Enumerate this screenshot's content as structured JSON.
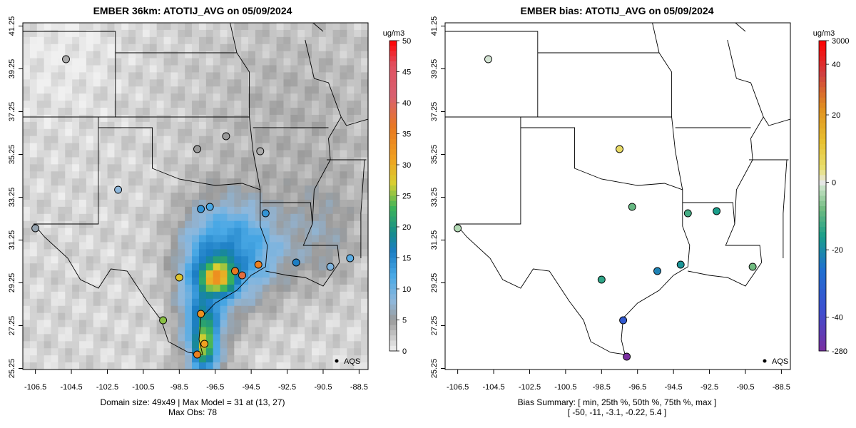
{
  "left_panel": {
    "title": "EMBER 36km: ATOTIJ_AVG on 05/09/2024",
    "footer_line1": "Domain size: 49x49 | Max Model = 31 at (13, 27)",
    "footer_line2": "Max Obs: 78",
    "colorbar_unit": "ug/m3",
    "colorbar_ticks": [
      "0",
      "5",
      "10",
      "15",
      "20",
      "25",
      "30",
      "35",
      "40",
      "45",
      "50"
    ],
    "legend_label": "AQS"
  },
  "right_panel": {
    "title": "EMBER bias: ATOTIJ_AVG on 05/09/2024",
    "footer_line1": "Bias Summary: [ min, 25th %, 50th %, 75th %, max ]",
    "footer_line2": "[ -50,   -11,   -3.1,   -0.22,   5.4 ]",
    "colorbar_unit": "ug/m3",
    "colorbar_ticks": [
      "3000",
      "40",
      "20",
      "0",
      "-20",
      "-40",
      "-280"
    ],
    "legend_label": "AQS"
  },
  "axes": {
    "x_ticks": [
      "-106.5",
      "-104.5",
      "-102.5",
      "-100.5",
      "-98.5",
      "-96.5",
      "-94.5",
      "-92.5",
      "-90.5",
      "-88.5"
    ],
    "y_ticks": [
      "25.25",
      "27.25",
      "29.25",
      "31.25",
      "33.25",
      "35.25",
      "37.25",
      "39.25",
      "41.25"
    ]
  },
  "chart_data": [
    {
      "type": "map",
      "title": "EMBER 36km: ATOTIJ_AVG on 05/09/2024",
      "variable": "ATOTIJ_AVG",
      "units": "ug/m3",
      "x_range": [
        -107.2,
        -88.0
      ],
      "y_range": [
        25.2,
        41.4
      ],
      "colorbar_range": [
        0,
        50
      ],
      "stations": [
        {
          "lon": -97.1,
          "lat": 26.4,
          "value": 31
        },
        {
          "lon": -97.3,
          "lat": 27.8,
          "value": 33
        },
        {
          "lon": -97.5,
          "lat": 25.9,
          "value": 35
        },
        {
          "lon": -98.5,
          "lat": 29.5,
          "value": 28
        },
        {
          "lon": -95.4,
          "lat": 29.8,
          "value": 36
        },
        {
          "lon": -95.0,
          "lat": 29.6,
          "value": 38
        },
        {
          "lon": -94.1,
          "lat": 30.1,
          "value": 35
        },
        {
          "lon": -96.8,
          "lat": 32.8,
          "value": 12
        },
        {
          "lon": -97.3,
          "lat": 32.7,
          "value": 14
        },
        {
          "lon": -99.4,
          "lat": 27.5,
          "value": 25
        },
        {
          "lon": -101.9,
          "lat": 33.6,
          "value": 8
        },
        {
          "lon": -106.5,
          "lat": 31.8,
          "value": 6
        },
        {
          "lon": -90.1,
          "lat": 30.0,
          "value": 9
        },
        {
          "lon": -92.0,
          "lat": 30.2,
          "value": 16
        },
        {
          "lon": -89.0,
          "lat": 30.4,
          "value": 11
        },
        {
          "lon": -93.7,
          "lat": 32.5,
          "value": 14
        },
        {
          "lon": -94.0,
          "lat": 35.4,
          "value": 4
        },
        {
          "lon": -97.5,
          "lat": 35.5,
          "value": 5
        },
        {
          "lon": -104.8,
          "lat": 39.7,
          "value": 4
        },
        {
          "lon": -95.9,
          "lat": 36.1,
          "value": 5
        }
      ]
    },
    {
      "type": "map",
      "title": "EMBER bias: ATOTIJ_AVG on 05/09/2024",
      "variable": "ATOTIJ_AVG bias",
      "units": "ug/m3",
      "x_range": [
        -107.2,
        -88.0
      ],
      "y_range": [
        25.2,
        41.4
      ],
      "summary": {
        "min": -50,
        "p25": -11,
        "p50": -3.1,
        "p75": -0.22,
        "max": 5.4
      },
      "stations": [
        {
          "lon": -97.3,
          "lat": 27.5,
          "value": -34
        },
        {
          "lon": -97.1,
          "lat": 25.8,
          "value": -50
        },
        {
          "lon": -95.4,
          "lat": 29.8,
          "value": -22
        },
        {
          "lon": -94.1,
          "lat": 30.1,
          "value": -18
        },
        {
          "lon": -98.5,
          "lat": 29.4,
          "value": -14
        },
        {
          "lon": -96.8,
          "lat": 32.8,
          "value": -9
        },
        {
          "lon": -93.7,
          "lat": 32.5,
          "value": -12
        },
        {
          "lon": -92.1,
          "lat": 32.6,
          "value": -16
        },
        {
          "lon": -90.1,
          "lat": 30.0,
          "value": -8
        },
        {
          "lon": -97.5,
          "lat": 35.5,
          "value": 5.4
        },
        {
          "lon": -104.8,
          "lat": 39.7,
          "value": -1
        },
        {
          "lon": -106.5,
          "lat": 31.8,
          "value": -3
        }
      ]
    }
  ]
}
